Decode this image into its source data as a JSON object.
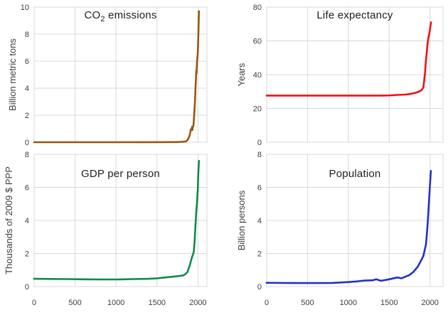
{
  "figure": {
    "background": "#ffffff",
    "grid_color": "#d8d8d8",
    "text_color": "#3d3d3d",
    "title_color": "#1f1f1f"
  },
  "chart_data": [
    {
      "id": "co2-emissions",
      "type": "line",
      "title": "CO₂ emissions",
      "title_pre": "CO",
      "title_sub": "2",
      "title_post": " emissions",
      "ylabel": "Billion metric tons",
      "color": "#9a5410",
      "xlim": [
        0,
        2110
      ],
      "ylim": [
        0,
        10
      ],
      "xticks": [
        0,
        500,
        1000,
        1500,
        2000
      ],
      "yticks": [
        0,
        2,
        4,
        6,
        8,
        10
      ],
      "show_x_tick_labels": false,
      "grid": true,
      "legend": "none",
      "x": [
        0,
        500,
        1000,
        1500,
        1700,
        1750,
        1800,
        1850,
        1870,
        1890,
        1900,
        1910,
        1913,
        1920,
        1925,
        1929,
        1932,
        1937,
        1945,
        1950,
        1955,
        1960,
        1965,
        1970,
        1975,
        1980,
        1983,
        1990,
        1995,
        2000,
        2005,
        2010,
        2013
      ],
      "y": [
        0.002,
        0.002,
        0.002,
        0.005,
        0.01,
        0.01,
        0.03,
        0.05,
        0.15,
        0.35,
        0.53,
        0.82,
        0.95,
        0.93,
        1.0,
        1.15,
        0.9,
        1.13,
        1.2,
        1.63,
        2.0,
        2.58,
        3.1,
        4.05,
        4.6,
        5.3,
        5.1,
        6.1,
        6.4,
        6.75,
        7.9,
        9.1,
        9.7
      ]
    },
    {
      "id": "life-expectancy",
      "type": "line",
      "title": "Life expectancy",
      "ylabel": "Years",
      "color": "#f01010",
      "xlim": [
        0,
        2160
      ],
      "ylim": [
        0,
        80
      ],
      "xticks": [
        0,
        500,
        1000,
        1500,
        2000
      ],
      "yticks": [
        0,
        20,
        40,
        60,
        80
      ],
      "show_x_tick_labels": false,
      "grid": true,
      "legend": "none",
      "x": [
        0,
        500,
        1000,
        1400,
        1500,
        1600,
        1700,
        1750,
        1800,
        1850,
        1880,
        1900,
        1920,
        1940,
        1950,
        1960,
        1970,
        1980,
        1990,
        2000,
        2005,
        2013
      ],
      "y": [
        27.6,
        27.6,
        27.6,
        27.6,
        27.7,
        28.0,
        28.2,
        28.5,
        29.0,
        29.7,
        30.3,
        31.0,
        32.5,
        41.0,
        48.0,
        52.5,
        58.0,
        61.5,
        64.0,
        66.4,
        68.5,
        71.0
      ]
    },
    {
      "id": "gdp-per-person",
      "type": "line",
      "title": "GDP per person",
      "ylabel": "Thousands of 2009 $ PPP",
      "color": "#108a47",
      "xlim": [
        0,
        2110
      ],
      "ylim": [
        0,
        8
      ],
      "xticks": [
        0,
        500,
        1000,
        1500,
        2000
      ],
      "yticks": [
        0,
        2,
        4,
        6,
        8
      ],
      "show_x_tick_labels": true,
      "grid": true,
      "legend": "none",
      "x": [
        0,
        200,
        400,
        600,
        800,
        1000,
        1100,
        1200,
        1300,
        1400,
        1500,
        1600,
        1700,
        1750,
        1800,
        1820,
        1850,
        1870,
        1900,
        1913,
        1929,
        1940,
        1950,
        1960,
        1970,
        1980,
        1990,
        2000,
        2005,
        2010,
        2013
      ],
      "y": [
        0.47,
        0.46,
        0.45,
        0.44,
        0.43,
        0.43,
        0.44,
        0.45,
        0.46,
        0.47,
        0.5,
        0.55,
        0.6,
        0.63,
        0.66,
        0.67,
        0.76,
        0.87,
        1.26,
        1.52,
        1.8,
        1.95,
        2.11,
        2.77,
        3.7,
        4.52,
        5.15,
        6.03,
        6.9,
        7.35,
        7.6
      ]
    },
    {
      "id": "population",
      "type": "line",
      "title": "Population",
      "ylabel": "Billion persons",
      "color": "#2230cc",
      "xlim": [
        0,
        2160
      ],
      "ylim": [
        0,
        8
      ],
      "xticks": [
        0,
        500,
        1000,
        1500,
        2000
      ],
      "yticks": [
        0,
        2,
        4,
        6,
        8
      ],
      "show_x_tick_labels": true,
      "grid": true,
      "legend": "none",
      "x": [
        0,
        200,
        400,
        600,
        800,
        1000,
        1100,
        1200,
        1300,
        1340,
        1400,
        1500,
        1600,
        1650,
        1700,
        1750,
        1800,
        1850,
        1900,
        1920,
        1940,
        1950,
        1960,
        1970,
        1980,
        1990,
        2000,
        2011
      ],
      "y": [
        0.23,
        0.22,
        0.21,
        0.21,
        0.22,
        0.27,
        0.31,
        0.36,
        0.38,
        0.44,
        0.35,
        0.44,
        0.55,
        0.5,
        0.6,
        0.7,
        0.9,
        1.2,
        1.65,
        1.86,
        2.3,
        2.52,
        3.02,
        3.7,
        4.45,
        5.31,
        6.12,
        7.0
      ]
    }
  ]
}
